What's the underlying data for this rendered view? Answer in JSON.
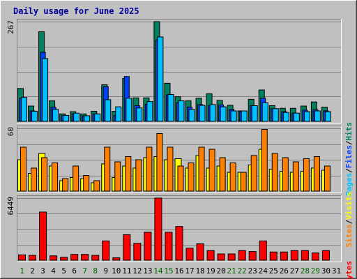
{
  "title": "Daily usage for June 2025",
  "colors": {
    "background": "#c0c0c0",
    "panel": "#c0c0c0",
    "grid": "#808080",
    "title": "#0000a0",
    "day_weekday": "#000000",
    "day_weekend": "#006400",
    "hits": "#008060",
    "files": "#0040ff",
    "pages": "#00c0ff",
    "visits": "#ffff00",
    "sites": "#ff8000",
    "kbytes": "#ff0000"
  },
  "chart_data": [
    {
      "type": "bar",
      "panel": "hits-files-pages",
      "ymax_label": "267",
      "ylim": [
        0,
        267
      ],
      "grid": true,
      "legend_right": [
        "Pages",
        "/",
        "Files",
        "/",
        "Hits"
      ],
      "categories": [
        "1",
        "2",
        "3",
        "4",
        "5",
        "6",
        "7",
        "8",
        "9",
        "10",
        "11",
        "12",
        "13",
        "14",
        "15",
        "16",
        "17",
        "18",
        "19",
        "20",
        "21",
        "22",
        "23",
        "24",
        "25",
        "26",
        "27",
        "28",
        "29",
        "30",
        "31"
      ],
      "series": [
        {
          "name": "Hits",
          "values": [
            88,
            41,
            240,
            55,
            20,
            26,
            20,
            27,
            98,
            27,
            115,
            63,
            63,
            267,
            102,
            66,
            55,
            62,
            74,
            56,
            43,
            28,
            59,
            84,
            42,
            35,
            35,
            41,
            52,
            38,
            0
          ]
        },
        {
          "name": "Files",
          "values": [
            62,
            28,
            185,
            38,
            16,
            20,
            15,
            20,
            93,
            16,
            120,
            42,
            46,
            218,
            71,
            50,
            38,
            45,
            42,
            44,
            32,
            26,
            42,
            62,
            34,
            26,
            22,
            30,
            31,
            28,
            0
          ]
        },
        {
          "name": "Pages",
          "values": [
            64,
            27,
            168,
            32,
            16,
            22,
            15,
            20,
            58,
            39,
            62,
            36,
            53,
            226,
            72,
            55,
            32,
            43,
            45,
            39,
            28,
            28,
            42,
            50,
            34,
            24,
            22,
            26,
            28,
            26,
            0
          ]
        }
      ]
    },
    {
      "type": "bar",
      "panel": "visits-sites",
      "ymax_label": "60",
      "ylim": [
        0,
        60
      ],
      "grid": true,
      "legend_right": [
        "Sites",
        "/",
        "Visits"
      ],
      "categories": [
        "1",
        "2",
        "3",
        "4",
        "5",
        "6",
        "7",
        "8",
        "9",
        "10",
        "11",
        "12",
        "13",
        "14",
        "15",
        "16",
        "17",
        "18",
        "19",
        "20",
        "21",
        "22",
        "23",
        "24",
        "25",
        "26",
        "27",
        "28",
        "29",
        "30",
        "31"
      ],
      "series": [
        {
          "name": "Visits",
          "values": [
            30,
            17,
            36,
            24,
            10,
            13,
            12,
            8,
            26,
            13,
            24,
            22,
            32,
            33,
            30,
            31,
            22,
            34,
            22,
            24,
            18,
            18,
            25,
            40,
            21,
            19,
            18,
            19,
            22,
            20,
            0
          ]
        },
        {
          "name": "Sites",
          "values": [
            42,
            22,
            32,
            27,
            12,
            24,
            15,
            10,
            42,
            28,
            33,
            30,
            42,
            55,
            42,
            24,
            27,
            42,
            40,
            32,
            27,
            18,
            34,
            59,
            36,
            32,
            28,
            31,
            33,
            24,
            0
          ]
        }
      ]
    },
    {
      "type": "bar",
      "panel": "kbytes",
      "ymax_label": "6449",
      "ylim": [
        0,
        6449
      ],
      "grid": true,
      "legend_right": [
        "KBytes"
      ],
      "categories": [
        "1",
        "2",
        "3",
        "4",
        "5",
        "6",
        "7",
        "8",
        "9",
        "10",
        "11",
        "12",
        "13",
        "14",
        "15",
        "16",
        "17",
        "18",
        "19",
        "20",
        "21",
        "22",
        "23",
        "24",
        "25",
        "26",
        "27",
        "28",
        "29",
        "30",
        "31"
      ],
      "series": [
        {
          "name": "KBytes",
          "values": [
            550,
            500,
            5000,
            450,
            300,
            600,
            600,
            500,
            2000,
            250,
            2650,
            1750,
            2900,
            6449,
            2900,
            3500,
            1250,
            1700,
            1000,
            650,
            650,
            1000,
            900,
            2000,
            850,
            850,
            1000,
            1000,
            750,
            1000,
            0
          ]
        }
      ]
    }
  ],
  "days": [
    "1",
    "2",
    "3",
    "4",
    "5",
    "6",
    "7",
    "8",
    "9",
    "10",
    "11",
    "12",
    "13",
    "14",
    "15",
    "16",
    "17",
    "18",
    "19",
    "20",
    "21",
    "22",
    "23",
    "24",
    "25",
    "26",
    "27",
    "28",
    "29",
    "30",
    "31"
  ],
  "weekend_days": [
    1,
    7,
    8,
    14,
    15,
    21,
    22,
    28,
    29
  ]
}
